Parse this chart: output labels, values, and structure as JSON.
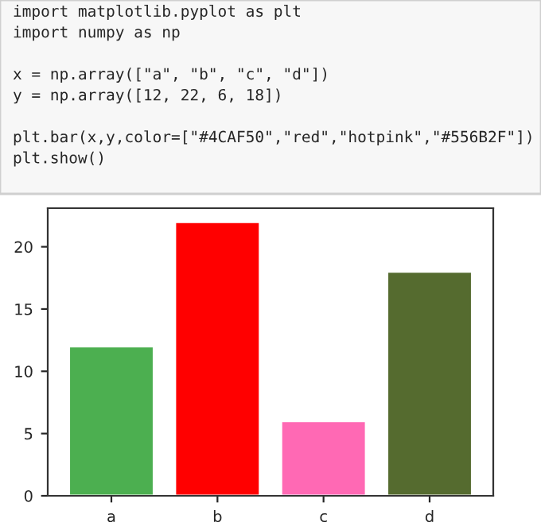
{
  "chart_data": {
    "type": "bar",
    "annotations": [
      "import matplotlib.pyplot as plt\nimport numpy as np\n\nx = np.array([\"a\", \"b\", \"c\", \"d\"])\ny = np.array([12, 22, 6, 18])\n\nplt.bar(x,y,color=[\"#4CAF50\",\"red\",\"hotpink\",\"#556B2F\"])\nplt.show()"
    ],
    "categories": [
      "a",
      "b",
      "c",
      "d"
    ],
    "values": [
      12,
      22,
      6,
      18
    ],
    "colors": [
      "#4caf50",
      "#ff0000",
      "#ff69b4",
      "#556b2f"
    ],
    "ylim": [
      0,
      23.1
    ],
    "yticks": [
      0,
      5,
      10,
      15,
      20
    ],
    "grid": false
  }
}
